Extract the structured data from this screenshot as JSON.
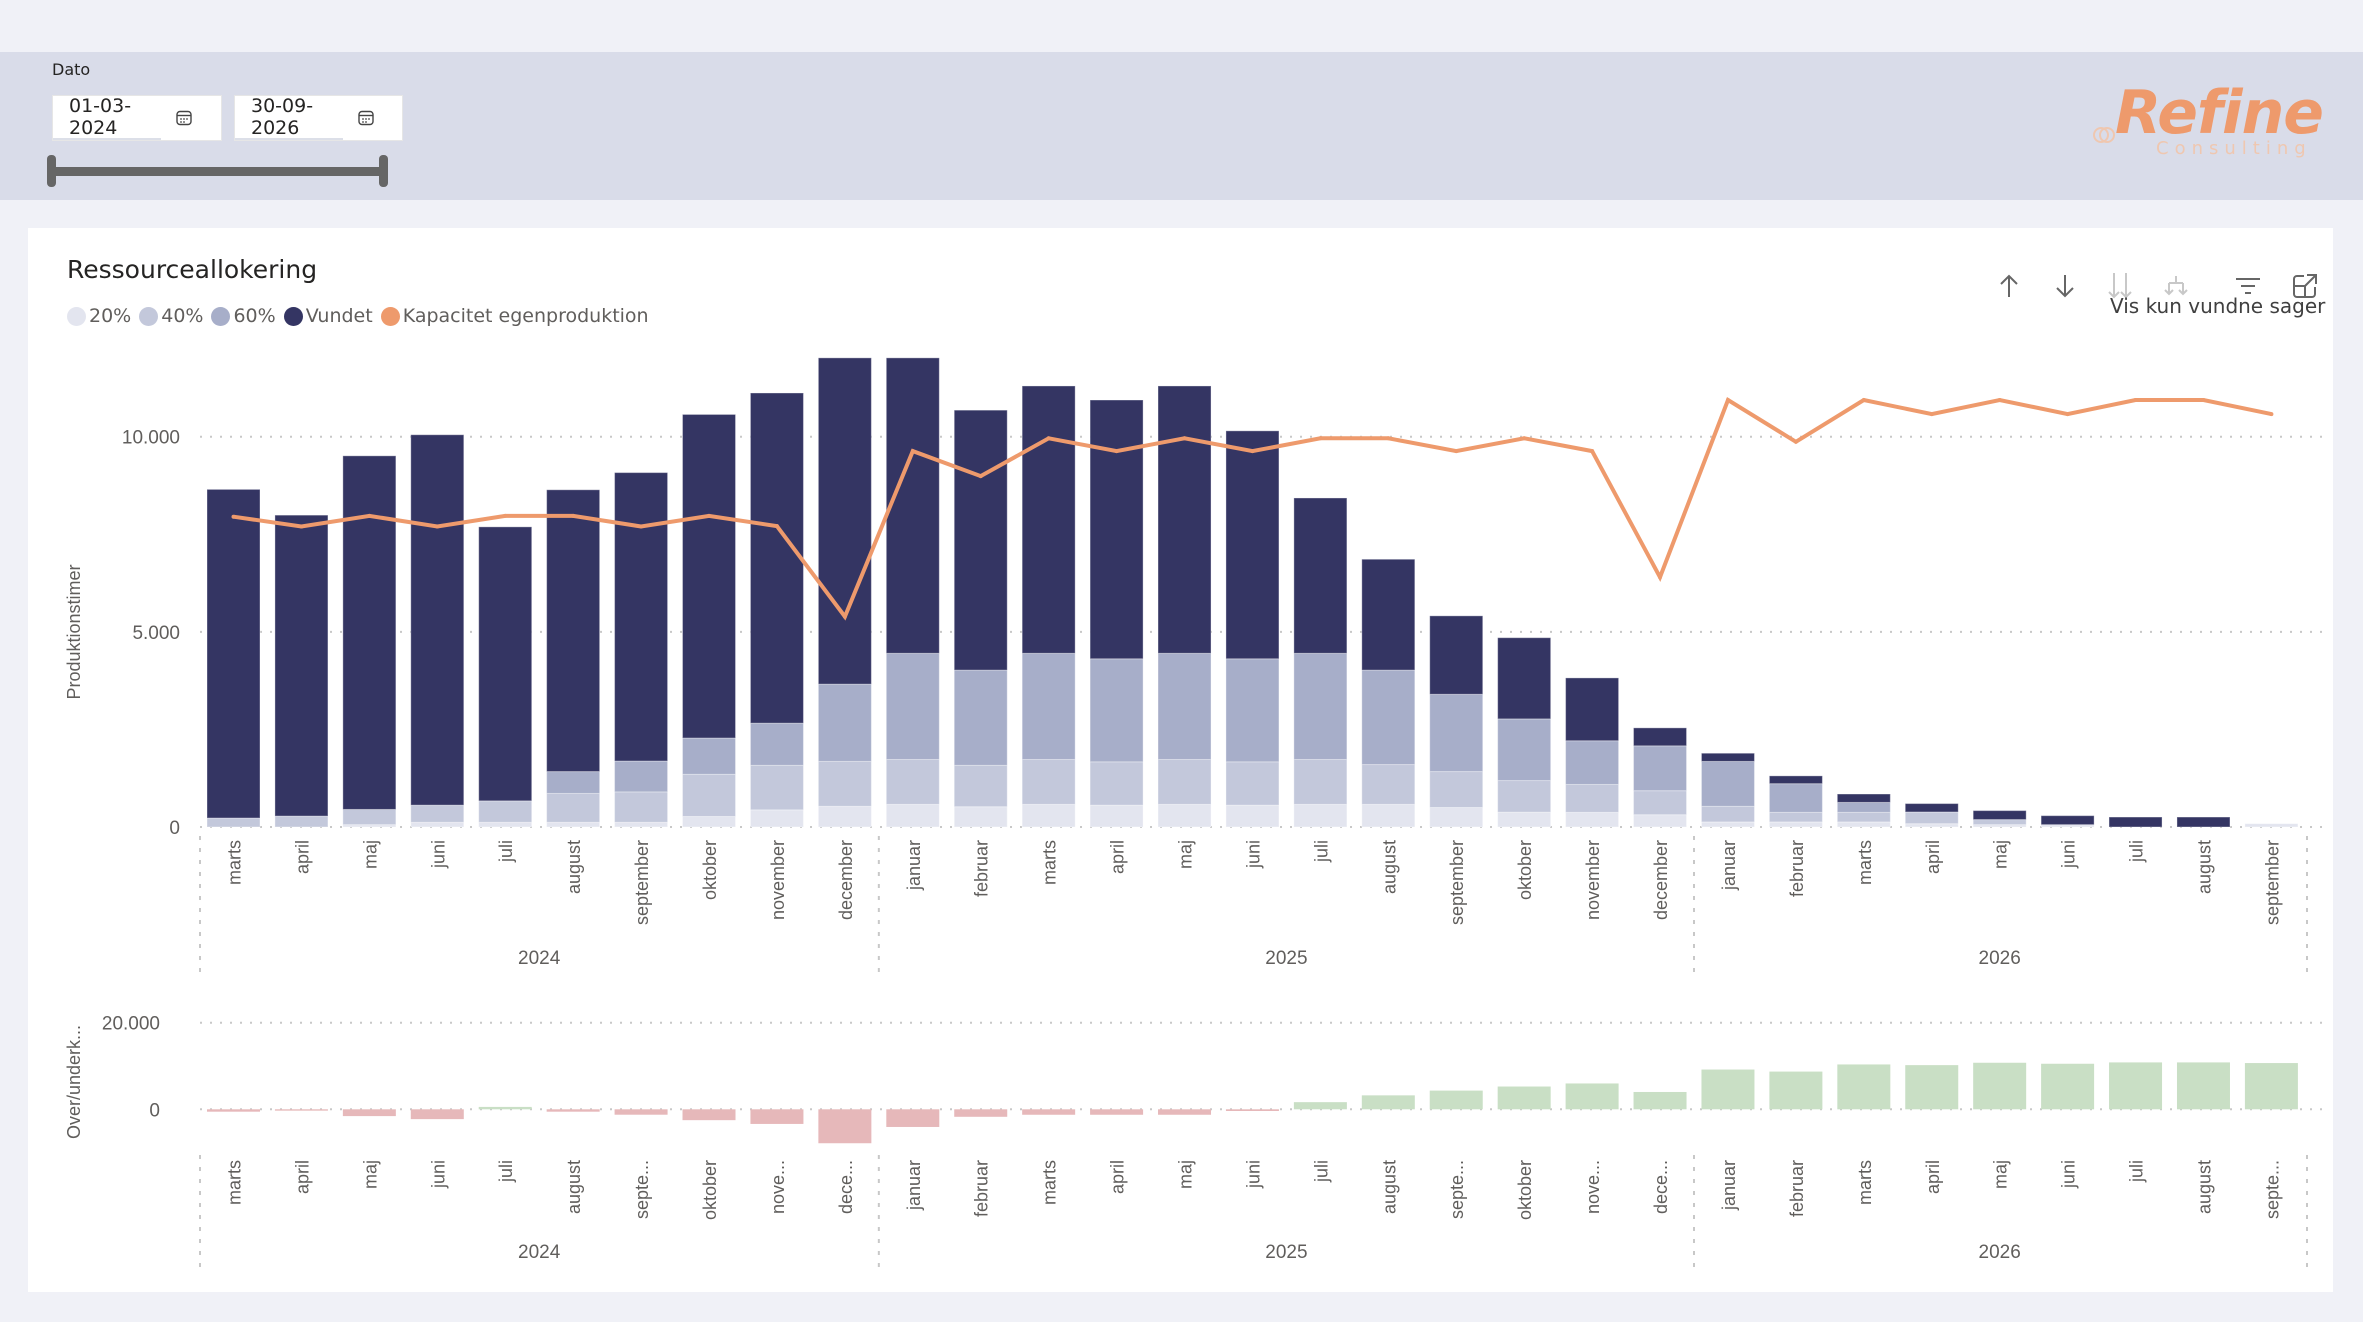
{
  "filter": {
    "label": "Dato",
    "start_date": "01-03-2024",
    "end_date": "30-09-2026",
    "calendar_icon": "calendar-icon",
    "range_fraction": [
      0,
      1
    ]
  },
  "logo": {
    "brand": "Refine",
    "subtitle": "Consulting"
  },
  "visual": {
    "title": "Ressourceallokering",
    "toolbar": {
      "sort_ascending_icon": "arrow-up-icon",
      "sort_descending_icon": "arrow-down-icon",
      "drill_down_icon": "double-arrow-down-icon",
      "expand_hierarchy_icon": "fork-down-icon",
      "filter_icon": "filter-icon",
      "focus_mode_icon": "focus-mode-icon",
      "vis_kun_label": "Vis kun vundne sager"
    }
  },
  "colors": {
    "p20": "#e3e5ef",
    "p40": "#c3c8db",
    "p60": "#a7aec9",
    "vundet": "#343563",
    "capacity": "#ee9a6c",
    "over_pos": "#c9dfc5",
    "over_neg": "#e6b8ba"
  },
  "chart_data": [
    {
      "type": "bar",
      "stacked": true,
      "title": "Ressourceallokering",
      "xlabel": "",
      "ylabel": "Produktionstimer",
      "ylim": [
        0,
        12200
      ],
      "yticks": [
        0,
        5000,
        10000
      ],
      "ytick_labels": [
        "0",
        "5.000",
        "10.000"
      ],
      "grid": true,
      "legend_position": "top-left",
      "legend": [
        "20%",
        "40%",
        "60%",
        "Vundet",
        "Kapacitet egenproduktion"
      ],
      "categories": [
        "marts",
        "april",
        "maj",
        "juni",
        "juli",
        "august",
        "september",
        "oktober",
        "november",
        "december",
        "januar",
        "februar",
        "marts",
        "april",
        "maj",
        "juni",
        "juli",
        "august",
        "september",
        "oktober",
        "november",
        "december",
        "januar",
        "februar",
        "marts",
        "april",
        "maj",
        "juni",
        "juli",
        "august",
        "september"
      ],
      "years": [
        {
          "label": "2024",
          "count": 10
        },
        {
          "label": "2025",
          "count": 12
        },
        {
          "label": "2026",
          "count": 9
        }
      ],
      "series": [
        {
          "name": "20%",
          "values": [
            0,
            0,
            60,
            120,
            120,
            120,
            120,
            270,
            440,
            530,
            580,
            520,
            580,
            560,
            580,
            560,
            580,
            580,
            500,
            380,
            375,
            315,
            130,
            130,
            130,
            85,
            60,
            60,
            0,
            0,
            85
          ]
        },
        {
          "name": "40%",
          "values": [
            230,
            280,
            390,
            440,
            550,
            740,
            780,
            1080,
            1140,
            1150,
            1150,
            1060,
            1150,
            1110,
            1150,
            1110,
            1150,
            1020,
            920,
            810,
            715,
            615,
            400,
            245,
            245,
            300,
            130,
            0,
            0,
            0,
            0
          ]
        },
        {
          "name": "60%",
          "values": [
            0,
            0,
            0,
            0,
            0,
            560,
            790,
            930,
            1080,
            1980,
            2720,
            2440,
            2720,
            2640,
            2720,
            2640,
            2720,
            2420,
            1980,
            1580,
            1120,
            1150,
            1150,
            735,
            255,
            0,
            0,
            0,
            0,
            0,
            0
          ]
        },
        {
          "name": "Vundet",
          "values": [
            8420,
            7710,
            9060,
            9490,
            7020,
            7220,
            7390,
            8290,
            8460,
            8360,
            7570,
            6660,
            6850,
            6630,
            6850,
            5840,
            3980,
            2840,
            2010,
            2080,
            1610,
            460,
            210,
            200,
            215,
            215,
            230,
            230,
            255,
            255,
            0
          ]
        },
        {
          "name": "Kapacitet egenproduktion",
          "type": "line",
          "values": [
            7950,
            7700,
            7970,
            7700,
            7970,
            7970,
            7700,
            7970,
            7710,
            5390,
            9630,
            8990,
            9960,
            9630,
            9960,
            9630,
            9960,
            9960,
            9630,
            9960,
            9630,
            6400,
            10940,
            9870,
            10940,
            10580,
            10940,
            10580,
            10940,
            10940,
            10580
          ]
        }
      ]
    },
    {
      "type": "bar",
      "title": "",
      "xlabel": "",
      "ylabel": "Over/underk...",
      "ylim": [
        -8000,
        20000
      ],
      "yticks": [
        0,
        20000
      ],
      "ytick_labels": [
        "0",
        "20.000"
      ],
      "grid": true,
      "categories": [
        "marts",
        "april",
        "maj",
        "juni",
        "juli",
        "august",
        "septe...",
        "oktober",
        "nove...",
        "dece...",
        "januar",
        "februar",
        "marts",
        "april",
        "maj",
        "juni",
        "juli",
        "august",
        "septe...",
        "oktober",
        "nove...",
        "dece...",
        "januar",
        "februar",
        "marts",
        "april",
        "maj",
        "juni",
        "juli",
        "august",
        "septe..."
      ],
      "years": [
        {
          "label": "2024",
          "count": 10
        },
        {
          "label": "2025",
          "count": 12
        },
        {
          "label": "2026",
          "count": 9
        }
      ],
      "values": [
        -550,
        -310,
        -1570,
        -2270,
        550,
        -550,
        -1250,
        -2510,
        -3380,
        -7840,
        -4080,
        -1730,
        -1260,
        -1260,
        -1260,
        -390,
        1650,
        3220,
        4320,
        5260,
        5970,
        4000,
        9180,
        8710,
        10360,
        10200,
        10750,
        10520,
        10830,
        10830,
        10680
      ]
    }
  ]
}
